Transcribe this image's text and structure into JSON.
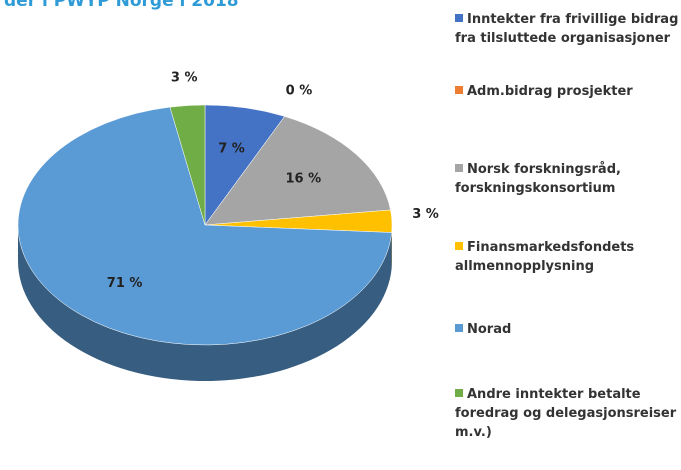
{
  "chart_data": {
    "type": "pie",
    "title": "der i PWYP Norge i 2018",
    "categories": [
      "Inntekter fra frivillige bidrag fra tilsluttede organisasjoner",
      "Adm.bidrag prosjekter",
      "Norsk forskningsråd, forskningskonsortium",
      "Finansmarkedsfondets allmennopplysning",
      "Norad",
      "Andre inntekter betalte foredrag og delegasjonsreiser m.v.)"
    ],
    "values": [
      7,
      0,
      16,
      3,
      71,
      3
    ],
    "value_labels": [
      "7 %",
      "0 %",
      "16 %",
      "3 %",
      "71 %",
      "3 %"
    ],
    "colors": [
      "#4472c4",
      "#ed7d31",
      "#a5a5a5",
      "#ffc000",
      "#5b9bd5",
      "#70ad47"
    ],
    "legend": "right"
  }
}
